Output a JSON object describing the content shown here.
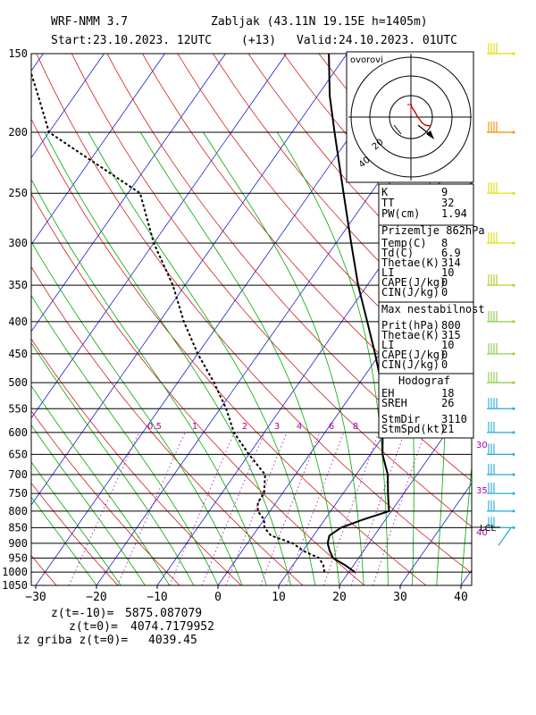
{
  "header": {
    "model": "WRF-NMM 3.7",
    "location": "Zabljak (43.11N 19.15E  h=1405m)",
    "start": "Start:23.10.2023.  12UTC",
    "lead": "(+13)",
    "valid": "Valid:24.10.2023.  01UTC"
  },
  "footer": {
    "line1_label": "z(t=-10)=",
    "line1_value": "5875.087079",
    "line2_label": "z(t=0)=",
    "line2_value": "4074.7179952",
    "line3_label": "iz griba  z(t=0)=",
    "line3_value": "4039.45"
  },
  "hodograph": {
    "title": "ovorovi",
    "ring_labels": [
      "20",
      "40"
    ]
  },
  "indices": {
    "block1": [
      {
        "label": "K",
        "value": "9"
      },
      {
        "label": "TT",
        "value": "32"
      },
      {
        "label": "PW(cm)",
        "value": "1.94"
      }
    ],
    "block2_title": "Prizemlje 862hPa",
    "block2": [
      {
        "label": "Temp(C)",
        "value": "8"
      },
      {
        "label": "Td(C)",
        "value": "6.9"
      },
      {
        "label": "Thetae(K)",
        "value": "314"
      },
      {
        "label": "LI",
        "value": "10"
      },
      {
        "label": "CAPE(J/kg)",
        "value": "0"
      },
      {
        "label": "CIN(J/kg)",
        "value": "0"
      }
    ],
    "block3_title": "Max nestabilnost",
    "block3": [
      {
        "label": "Prit(hPa)",
        "value": "800"
      },
      {
        "label": "Thetae(K)",
        "value": "315"
      },
      {
        "label": "LI",
        "value": "10"
      },
      {
        "label": "CAPE(J/kg)",
        "value": "0"
      },
      {
        "label": "CIN(J/kg)",
        "value": "0"
      }
    ],
    "block4_title": "Hodograf",
    "block4": [
      {
        "label": "EH",
        "value": "18"
      },
      {
        "label": "SREH",
        "value": "26"
      },
      {
        "label": "StmDir",
        "value": "3110"
      },
      {
        "label": "StmSpd(kt)",
        "value": "21"
      }
    ]
  },
  "colors": {
    "isotherm": "#0000cc",
    "dry_adiabat": "#cc0000",
    "moist_adiabat": "#00aa00",
    "mixing_ratio": "#aa00aa",
    "isobar": "#000000",
    "barb": "#22aadd",
    "barb_top": "#dddd00",
    "barb_200": "#ff8800"
  },
  "chart_data": {
    "type": "line",
    "title": "",
    "xlabel": "",
    "ylabel": "",
    "xlim": [
      -30,
      42
    ],
    "ylim": [
      1050,
      150
    ],
    "y_scale": "log",
    "x_ticks": [
      "−30",
      "−20",
      "−10",
      "0",
      "10",
      "20",
      "30",
      "40"
    ],
    "pressure_ticks": [
      150,
      200,
      250,
      300,
      350,
      400,
      450,
      500,
      550,
      600,
      650,
      700,
      750,
      800,
      850,
      900,
      950,
      1000,
      1050
    ],
    "mixing_ratio_labels": [
      "0.5",
      "1",
      "2",
      "3",
      "4",
      "6",
      "8"
    ],
    "annotations": [
      "30",
      "35",
      "40",
      "LCL"
    ],
    "series": [
      {
        "style": "solid",
        "p": [
          1000,
          975,
          950,
          925,
          900,
          875,
          850,
          825,
          800,
          775,
          750,
          700,
          650,
          600,
          550,
          500,
          450,
          400,
          350,
          300,
          250,
          200,
          175,
          150
        ],
        "values": [
          21,
          18.6,
          15.8,
          14.4,
          13.2,
          12.6,
          13.6,
          16.3,
          19.6,
          18.5,
          17.4,
          15.2,
          12.0,
          9.5,
          7.0,
          3.5,
          -0.8,
          -5.8,
          -11.5,
          -17.5,
          -24.5,
          -33.0,
          -38.0,
          -43.0
        ]
      },
      {
        "style": "dashed",
        "p": [
          1000,
          975,
          950,
          925,
          900,
          875,
          850,
          825,
          800,
          775,
          750,
          700,
          650,
          600,
          550,
          500,
          450,
          400,
          350,
          300,
          250,
          200,
          175,
          150
        ],
        "values": [
          16.0,
          15.0,
          13.5,
          10.0,
          7.5,
          3.0,
          1.0,
          0.0,
          -2.0,
          -3.0,
          -3.0,
          -5.0,
          -10.0,
          -15.0,
          -19.0,
          -24.0,
          -30.0,
          -36.0,
          -42.0,
          -50.0,
          -58.0,
          -80.0,
          -86.0,
          -93.0
        ]
      }
    ]
  }
}
